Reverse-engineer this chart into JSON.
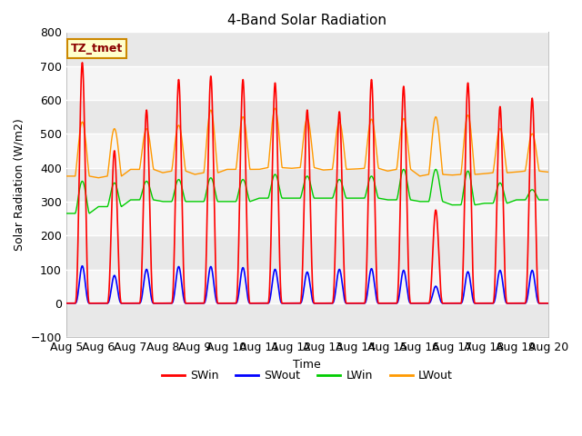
{
  "title": "4-Band Solar Radiation",
  "xlabel": "Time",
  "ylabel": "Solar Radiation (W/m2)",
  "ylim": [
    -100,
    800
  ],
  "annotation": "TZ_tmet",
  "legend_labels": [
    "SWin",
    "SWout",
    "LWin",
    "LWout"
  ],
  "legend_colors": [
    "#ff0000",
    "#0000ff",
    "#00cc00",
    "#ff9900"
  ],
  "fig_bg": "#ffffff",
  "plot_bg_light": "#f0f0f0",
  "plot_bg_dark": "#e0e0e0",
  "xticklabels": [
    "Aug 5",
    "Aug 6",
    "Aug 7",
    "Aug 8",
    "Aug 9",
    "Aug 10",
    "Aug 11",
    "Aug 12",
    "Aug 13",
    "Aug 14",
    "Aug 15",
    "Aug 16",
    "Aug 17",
    "Aug 18",
    "Aug 19",
    "Aug 20"
  ],
  "days": 15,
  "points_per_day": 240,
  "SWin_peaks": [
    710,
    450,
    570,
    660,
    670,
    660,
    650,
    570,
    565,
    660,
    640,
    275,
    650,
    580,
    605
  ],
  "SWout_peaks": [
    110,
    82,
    100,
    108,
    108,
    105,
    100,
    92,
    100,
    102,
    97,
    50,
    93,
    97,
    97
  ],
  "LWin_base": [
    265,
    285,
    305,
    300,
    300,
    300,
    310,
    310,
    310,
    310,
    305,
    300,
    290,
    295,
    305
  ],
  "LWin_amp": [
    95,
    70,
    55,
    65,
    70,
    65,
    70,
    65,
    55,
    65,
    90,
    95,
    100,
    60,
    30
  ],
  "LWout_base": [
    375,
    375,
    395,
    390,
    385,
    395,
    400,
    400,
    395,
    398,
    395,
    380,
    380,
    385,
    390
  ],
  "LWout_amp": [
    160,
    140,
    120,
    135,
    185,
    155,
    175,
    145,
    140,
    145,
    150,
    170,
    175,
    130,
    110
  ],
  "LWout_start": [
    375,
    370,
    395,
    385,
    380,
    395,
    395,
    398,
    393,
    396,
    390,
    375,
    378,
    382,
    387
  ]
}
